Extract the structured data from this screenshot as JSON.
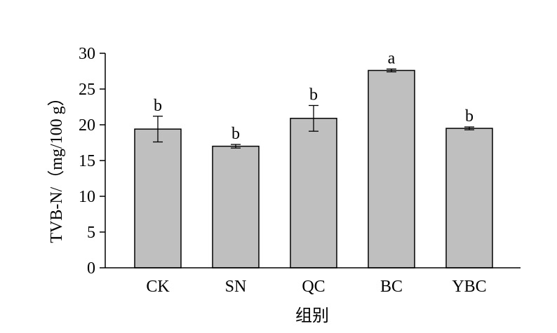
{
  "chart_data": {
    "type": "bar",
    "categories": [
      "CK",
      "SN",
      "QC",
      "BC",
      "YBC"
    ],
    "values": [
      19.4,
      17.0,
      20.9,
      27.6,
      19.5
    ],
    "errors": [
      1.8,
      0.25,
      1.8,
      0.2,
      0.2
    ],
    "significance": [
      "b",
      "b",
      "b",
      "a",
      "b"
    ],
    "xlabel": "组别",
    "ylabel": "TVB-N/（mg/100 g）",
    "ylim": [
      0,
      30
    ],
    "yticks": [
      0,
      5,
      10,
      15,
      20,
      25,
      30
    ],
    "grid": false,
    "colors": {
      "bar_fill": "#bfbfbf",
      "bar_stroke": "#000000",
      "axis": "#000000"
    }
  }
}
